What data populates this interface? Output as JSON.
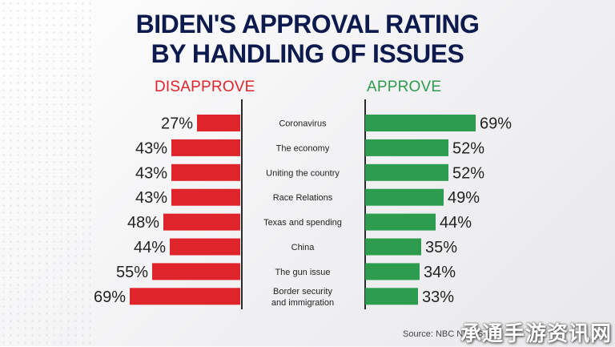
{
  "title_line1": "BIDEN'S APPROVAL RATING",
  "title_line2": "BY HANDLING OF ISSUES",
  "source": "Source: NBC NEWS",
  "watermark": "承通手游资讯网",
  "colors": {
    "disapprove": "#e0242b",
    "approve": "#2e9c4e",
    "title": "#0d1a4d"
  },
  "chart_data": {
    "type": "bar",
    "title": "BIDEN'S APPROVAL RATING BY HANDLING OF ISSUES",
    "categories": [
      "Coronavirus",
      "The economy",
      "Uniting the country",
      "Race Relations",
      "Texas and spending",
      "China",
      "The gun issue",
      "Border security and immigration"
    ],
    "series": [
      {
        "name": "DISAPPROVE",
        "values": [
          27,
          43,
          43,
          43,
          48,
          44,
          55,
          69
        ]
      },
      {
        "name": "APPROVE",
        "values": [
          69,
          52,
          52,
          49,
          44,
          35,
          34,
          33
        ]
      }
    ],
    "unit": "%"
  }
}
